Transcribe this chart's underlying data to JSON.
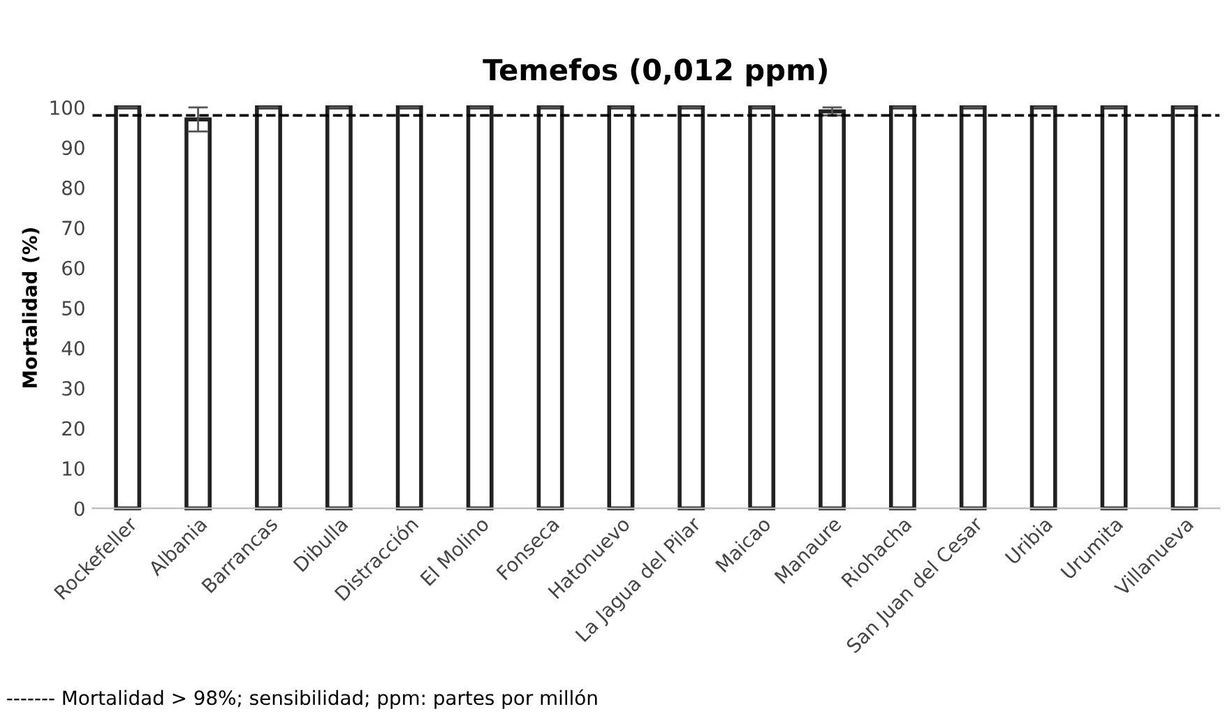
{
  "chart_data": {
    "type": "bar",
    "title": "Temefos (0,012 ppm)",
    "ylabel": "Mortalidad (%)",
    "categories": [
      "Rockefeller",
      "Albania",
      "Barrancas",
      "Dibulla",
      "Distracción",
      "El Molino",
      "Fonseca",
      "Hatonuevo",
      "La Jagua del Pilar",
      "Maicao",
      "Manaure",
      "Riohacha",
      "San Juan del Cesar",
      "Uribia",
      "Urumita",
      "Villanueva"
    ],
    "values": [
      100,
      97,
      100,
      100,
      100,
      100,
      100,
      100,
      100,
      100,
      99,
      100,
      100,
      100,
      100,
      100
    ],
    "errors": [
      null,
      3,
      null,
      null,
      null,
      null,
      null,
      null,
      null,
      null,
      1,
      null,
      null,
      null,
      null,
      null
    ],
    "color": "#ffffff",
    "ylim": [
      0,
      100
    ],
    "yticks": [
      0,
      10,
      20,
      30,
      40,
      50,
      60,
      70,
      80,
      90,
      100
    ],
    "ref_lines": [
      {
        "axis": "y",
        "value": 98,
        "label": null,
        "color": "#000000",
        "line_style": "dashed"
      }
    ],
    "annotations": [
      "------- Mortalidad > 98%; sensibilidad; ppm: partes por millón"
    ],
    "grid": false,
    "legend": false
  }
}
